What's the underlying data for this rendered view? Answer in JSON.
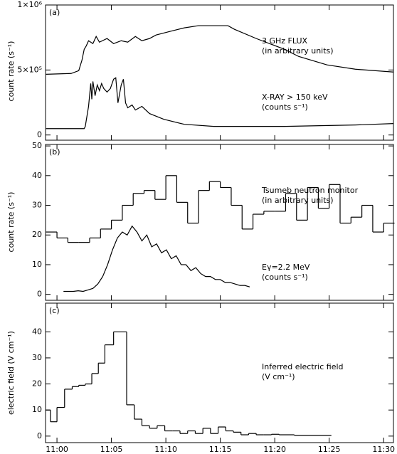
{
  "chart_data": [
    {
      "type": "line",
      "panel_label": "(a)",
      "y_label": "count rate (s⁻¹)",
      "ylim": [
        -40000,
        1000000
      ],
      "yticks": [
        0,
        {
          "value": 500000,
          "label": "5×10⁵"
        },
        {
          "value": 1000000,
          "label": "1×10⁶"
        }
      ],
      "annotations": [
        "3 GHz FLUX",
        "(in arbitrary units)",
        "X-RAY > 150 keV",
        "(counts s⁻¹)"
      ],
      "series": [
        {
          "color": "#000000",
          "x": [
            -1.0,
            1.3,
            2.0,
            2.3,
            2.5,
            2.7,
            2.9,
            3.3,
            3.6,
            3.9,
            4.6,
            5.2,
            5.9,
            6.5,
            7.2,
            7.8,
            8.5,
            9.1,
            10.4,
            11.7,
            13.0,
            15.7,
            16.3,
            18.3,
            20.9,
            22.2,
            24.8,
            27.4,
            30.9
          ],
          "values": [
            467000,
            473000,
            495000,
            577000,
            659000,
            687000,
            725000,
            703000,
            758000,
            714000,
            742000,
            703000,
            725000,
            714000,
            758000,
            725000,
            742000,
            769000,
            797000,
            824000,
            841000,
            841000,
            813000,
            742000,
            659000,
            604000,
            539000,
            506000,
            484000
          ]
        },
        {
          "color": "#000000",
          "x": [
            -1.0,
            1.3,
            2.5,
            2.6,
            2.9,
            3.1,
            3.2,
            3.3,
            3.5,
            3.7,
            3.9,
            4.1,
            4.3,
            4.6,
            4.9,
            5.2,
            5.4,
            5.6,
            5.9,
            6.1,
            6.3,
            6.5,
            6.9,
            7.2,
            7.8,
            8.5,
            9.8,
            11.7,
            14.4,
            20.9,
            27.4,
            30.9
          ],
          "values": [
            49000,
            49000,
            49000,
            66000,
            220000,
            396000,
            275000,
            412000,
            302000,
            385000,
            341000,
            396000,
            357000,
            330000,
            357000,
            429000,
            440000,
            247000,
            385000,
            429000,
            247000,
            209000,
            231000,
            192000,
            220000,
            165000,
            121000,
            82000,
            66000,
            66000,
            77000,
            88000
          ]
        }
      ]
    },
    {
      "type": "line",
      "panel_label": "(b)",
      "y_label": "count rate (s⁻¹)",
      "ylim": [
        -2,
        50.5
      ],
      "yticks": [
        0,
        10,
        20,
        30,
        40,
        50
      ],
      "annotations": [
        "Tsumeb neutron monitor",
        "(in arbitrary units)",
        "Eγ=2.2 MeV",
        "(counts s⁻¹)"
      ],
      "series": [
        {
          "color": "#000000",
          "bins": [
            -1,
            0,
            1,
            2,
            3,
            4,
            5,
            6,
            7,
            8,
            9,
            10,
            11,
            12,
            13,
            14,
            15,
            16,
            17,
            18,
            19,
            20,
            21,
            22,
            23,
            24,
            25,
            26,
            27,
            28,
            29,
            30,
            31
          ],
          "values": [
            21,
            19,
            17.5,
            17.5,
            19,
            22,
            25,
            30,
            34,
            35,
            32,
            40,
            31,
            24,
            35,
            38,
            36,
            30,
            22,
            27,
            28,
            28,
            34,
            25,
            36,
            29,
            37,
            24,
            26,
            30,
            21,
            24
          ]
        },
        {
          "color": "#000000",
          "x": [
            0.6,
            1.05,
            1.5,
            1.95,
            2.4,
            2.85,
            3.3,
            3.75,
            4.2,
            4.65,
            5.1,
            5.55,
            6.0,
            6.45,
            6.9,
            7.35,
            7.8,
            8.25,
            8.7,
            9.15,
            9.6,
            10.05,
            10.5,
            10.95,
            11.4,
            11.85,
            12.3,
            12.75,
            13.2,
            13.65,
            14.1,
            14.55,
            15.0,
            15.45,
            15.9,
            16.35,
            16.8,
            17.25,
            17.7
          ],
          "values": [
            1,
            1,
            1,
            1.2,
            1,
            1.5,
            2,
            3.5,
            6,
            10,
            15,
            19,
            21,
            20,
            23,
            21,
            18,
            20,
            16,
            17,
            14,
            15,
            12,
            13,
            10,
            10,
            8,
            9,
            7,
            6,
            6,
            5,
            5,
            4,
            4,
            3.5,
            3,
            3,
            2.5
          ]
        }
      ]
    },
    {
      "type": "line",
      "panel_label": "(c)",
      "y_label": "electric field (V cm⁻¹)",
      "ylim": [
        -2.5,
        51
      ],
      "yticks": [
        0,
        10,
        20,
        30,
        40
      ],
      "xlim": [
        -1.05,
        30.9
      ],
      "xticks": [
        {
          "value": 0,
          "label": "11:00"
        },
        {
          "value": 5,
          "label": "11:05"
        },
        {
          "value": 10,
          "label": "11:10"
        },
        {
          "value": 15,
          "label": "11:15"
        },
        {
          "value": 20,
          "label": "11:20"
        },
        {
          "value": 25,
          "label": "11:25"
        },
        {
          "value": 30,
          "label": "11:30"
        }
      ],
      "annotations": [
        "Inferred electric field",
        "(V cm⁻¹)"
      ],
      "series": [
        {
          "color": "#000000",
          "bins": [
            -1,
            -0.6,
            0,
            0.7,
            1.4,
            2.0,
            2.6,
            3.2,
            3.8,
            4.4,
            5.2,
            6.4,
            7.1,
            7.8,
            8.5,
            9.2,
            9.9,
            10.6,
            11.3,
            12.0,
            12.7,
            13.4,
            14.1,
            14.8,
            15.5,
            16.2,
            16.9,
            17.6,
            18.3,
            19.0,
            19.7,
            20.4,
            21.1,
            21.8,
            25.2
          ],
          "values": [
            10,
            5.5,
            11,
            18,
            19,
            19.5,
            20,
            24,
            28,
            35,
            40,
            12,
            6.5,
            4,
            3,
            4,
            2,
            2,
            1,
            2,
            1,
            3,
            1,
            3.5,
            2,
            1.5,
            0.5,
            1,
            0.5,
            0.5,
            0.7,
            0.5,
            0.5,
            0.3
          ]
        }
      ]
    }
  ]
}
